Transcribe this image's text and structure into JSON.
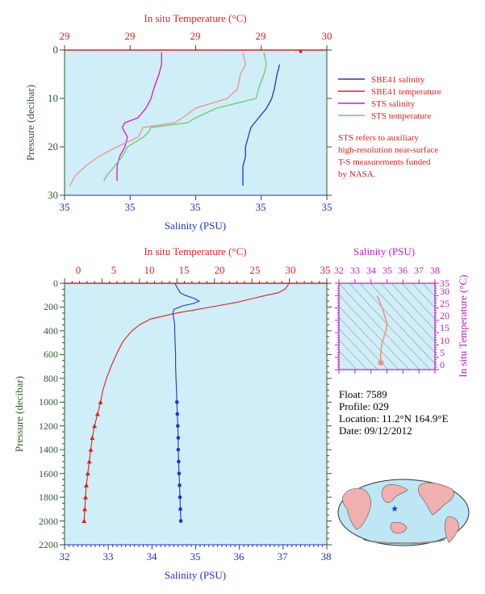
{
  "colors": {
    "panel_bg": "#cfeef8",
    "sbe41_salinity": "#2233cc",
    "sbe41_temperature": "#e02020",
    "sts_salinity": "#d018d0",
    "sts_temperature": "#6ec86e",
    "sts_temperature_alt": "#f0908a",
    "pressure_axis": "#2e5a2e",
    "ts_axis": "#c020c0",
    "land": "#f0b0b0",
    "ocean": "#bfe6f5"
  },
  "top_panel": {
    "x_top_label": "In situ Temperature (°C)",
    "x_top_ticks": [
      "29",
      "29",
      "29",
      "29",
      "30"
    ],
    "x_bottom_label": "Salinity (PSU)",
    "x_bottom_ticks": [
      "35",
      "35",
      "35",
      "35",
      "35"
    ],
    "y_label": "Pressure (decibar)",
    "y_ticks": [
      "0",
      "10",
      "20",
      "30"
    ]
  },
  "legend": {
    "items": [
      {
        "label": "SBE41 salinity",
        "color": "#2233cc"
      },
      {
        "label": "SBE41 temperature",
        "color": "#e02020"
      },
      {
        "label": "STS salinity",
        "color": "#d018d0"
      },
      {
        "label": "STS temperature",
        "color": "#6ec86e"
      }
    ],
    "note_lines": [
      "STS refers to auxiliary",
      "high-resolution near-surface",
      "T-S measurements funded",
      "by NASA."
    ]
  },
  "bottom_panel": {
    "x_top_label": "In situ Temperature (°C)",
    "x_top_ticks": [
      "0",
      "5",
      "10",
      "15",
      "20",
      "25",
      "30",
      "35"
    ],
    "x_bottom_label": "Salinity (PSU)",
    "x_bottom_ticks": [
      "32",
      "33",
      "34",
      "35",
      "36",
      "37",
      "38"
    ],
    "y_label": "Pressure (decibar)",
    "y_ticks": [
      "0",
      "200",
      "400",
      "600",
      "800",
      "1000",
      "1200",
      "1400",
      "1600",
      "1800",
      "2000",
      "2200"
    ]
  },
  "ts_panel": {
    "x_label": "Salinity (PSU)",
    "x_ticks": [
      "32",
      "33",
      "34",
      "35",
      "36",
      "37",
      "38"
    ],
    "y_label": "In situ Temperature (°C)",
    "y_ticks": [
      "0",
      "5",
      "10",
      "15",
      "20",
      "25",
      "30",
      "35"
    ]
  },
  "info": {
    "float": "Float: 7589",
    "profile": "Profile: 029",
    "location": "Location: 11.2°N 164.9°E",
    "date": "Date: 09/12/2012"
  },
  "chart_data": [
    {
      "type": "line",
      "panel": "top",
      "title": "",
      "y_axis": "Pressure (decibar)",
      "ylim": [
        0,
        30
      ],
      "x_bottom_axis": "Salinity (PSU)",
      "x_top_axis": "In situ Temperature (°C)",
      "x_top_ticks_printed": [
        "29",
        "29",
        "29",
        "29",
        "30"
      ],
      "x_bottom_ticks_printed": [
        "35",
        "35",
        "35",
        "35",
        "35"
      ],
      "temperature_range": [
        29.0,
        30.0
      ],
      "salinity_range": [
        34.0,
        35.0
      ],
      "series": [
        {
          "name": "SBE41 salinity",
          "axis": "salinity",
          "y": [
            3,
            5,
            8,
            10,
            12,
            14,
            16,
            18,
            20,
            22,
            24,
            26,
            28
          ],
          "x": [
            34.82,
            34.81,
            34.8,
            34.79,
            34.77,
            34.74,
            34.71,
            34.7,
            34.69,
            34.69,
            34.68,
            34.68,
            34.68
          ]
        },
        {
          "name": "SBE41 temperature",
          "axis": "temperature",
          "y": [
            0.3
          ],
          "x": [
            29.9
          ]
        },
        {
          "name": "STS salinity",
          "axis": "salinity",
          "y": [
            0.5,
            3,
            5,
            8,
            10,
            12,
            14,
            15,
            16,
            18,
            20,
            22,
            24,
            26,
            27
          ],
          "x": [
            34.37,
            34.37,
            34.36,
            34.34,
            34.33,
            34.31,
            34.28,
            34.23,
            34.22,
            34.24,
            34.23,
            34.21,
            34.2,
            34.2,
            34.2
          ]
        },
        {
          "name": "STS temperature",
          "axis": "temperature",
          "y": [
            0.5,
            3,
            5,
            8,
            10,
            12,
            14,
            15,
            16,
            17,
            18,
            20,
            22,
            24,
            26,
            27
          ],
          "x": [
            29.76,
            29.77,
            29.76,
            29.74,
            29.73,
            29.58,
            29.5,
            29.47,
            29.33,
            29.32,
            29.3,
            29.24,
            29.22,
            29.19,
            29.16,
            29.15
          ]
        },
        {
          "name": "",
          "axis": "temperature",
          "y": [
            0.5,
            3,
            5,
            8,
            10,
            12,
            14,
            15,
            16,
            18,
            20,
            22,
            24,
            26,
            28
          ],
          "x": [
            29.68,
            29.69,
            29.67,
            29.66,
            29.62,
            29.5,
            29.45,
            29.42,
            29.3,
            29.28,
            29.2,
            29.13,
            29.08,
            29.04,
            29.02
          ]
        }
      ]
    },
    {
      "type": "line",
      "panel": "bottom",
      "title": "",
      "y_axis": "Pressure (decibar)",
      "ylim": [
        0,
        2200
      ],
      "x_bottom_axis": "Salinity (PSU)",
      "xlim_salinity": [
        32,
        38
      ],
      "x_top_axis": "In situ Temperature (°C)",
      "xlim_temperature": [
        0,
        35
      ],
      "series": [
        {
          "name": "SBE41 temperature",
          "axis": "temperature",
          "y": [
            0,
            20,
            50,
            80,
            100,
            130,
            160,
            200,
            250,
            300,
            350,
            400,
            450,
            500,
            600,
            700,
            800,
            900,
            1000,
            1100,
            1200,
            1300,
            1400,
            1500,
            1600,
            1700,
            1800,
            1900,
            2000
          ],
          "x": [
            29.9,
            29.8,
            29.4,
            28.5,
            27.0,
            25.0,
            23.0,
            19.5,
            15.0,
            11.5,
            10.0,
            9.0,
            8.3,
            7.7,
            6.9,
            6.2,
            5.6,
            5.1,
            4.8,
            4.4,
            4.0,
            3.7,
            3.5,
            3.3,
            3.1,
            2.9,
            2.8,
            2.7,
            2.6
          ]
        },
        {
          "name": "SBE41 salinity",
          "axis": "salinity",
          "y": [
            0,
            20,
            50,
            80,
            100,
            130,
            150,
            170,
            190,
            220,
            250,
            300,
            350,
            400,
            500,
            600,
            700,
            800,
            900,
            1000,
            1100,
            1200,
            1300,
            1400,
            1500,
            1600,
            1700,
            1800,
            1900,
            2000
          ],
          "x": [
            34.53,
            34.55,
            34.6,
            34.65,
            34.75,
            34.98,
            35.08,
            34.95,
            34.7,
            34.5,
            34.48,
            34.5,
            34.52,
            34.52,
            34.53,
            34.54,
            34.54,
            34.55,
            34.56,
            34.57,
            34.58,
            34.59,
            34.6,
            34.6,
            34.61,
            34.62,
            34.63,
            34.64,
            34.65,
            34.66
          ]
        }
      ]
    },
    {
      "type": "line",
      "panel": "ts",
      "title": "",
      "x_axis": "Salinity (PSU)",
      "xlim": [
        32,
        38
      ],
      "y_axis": "In situ Temperature (°C)",
      "ylim": [
        0,
        35
      ],
      "series": [
        {
          "name": "",
          "x": [
            34.4,
            34.45,
            34.55,
            34.7,
            34.85,
            35.0,
            34.95,
            34.8,
            34.7,
            34.65,
            34.62,
            34.6,
            34.6,
            34.62,
            34.62
          ],
          "y": [
            29.9,
            29.0,
            27.5,
            25.0,
            22.0,
            19.0,
            16.0,
            13.0,
            11.0,
            9.0,
            7.5,
            6.0,
            5.0,
            4.0,
            2.8
          ]
        }
      ]
    }
  ]
}
